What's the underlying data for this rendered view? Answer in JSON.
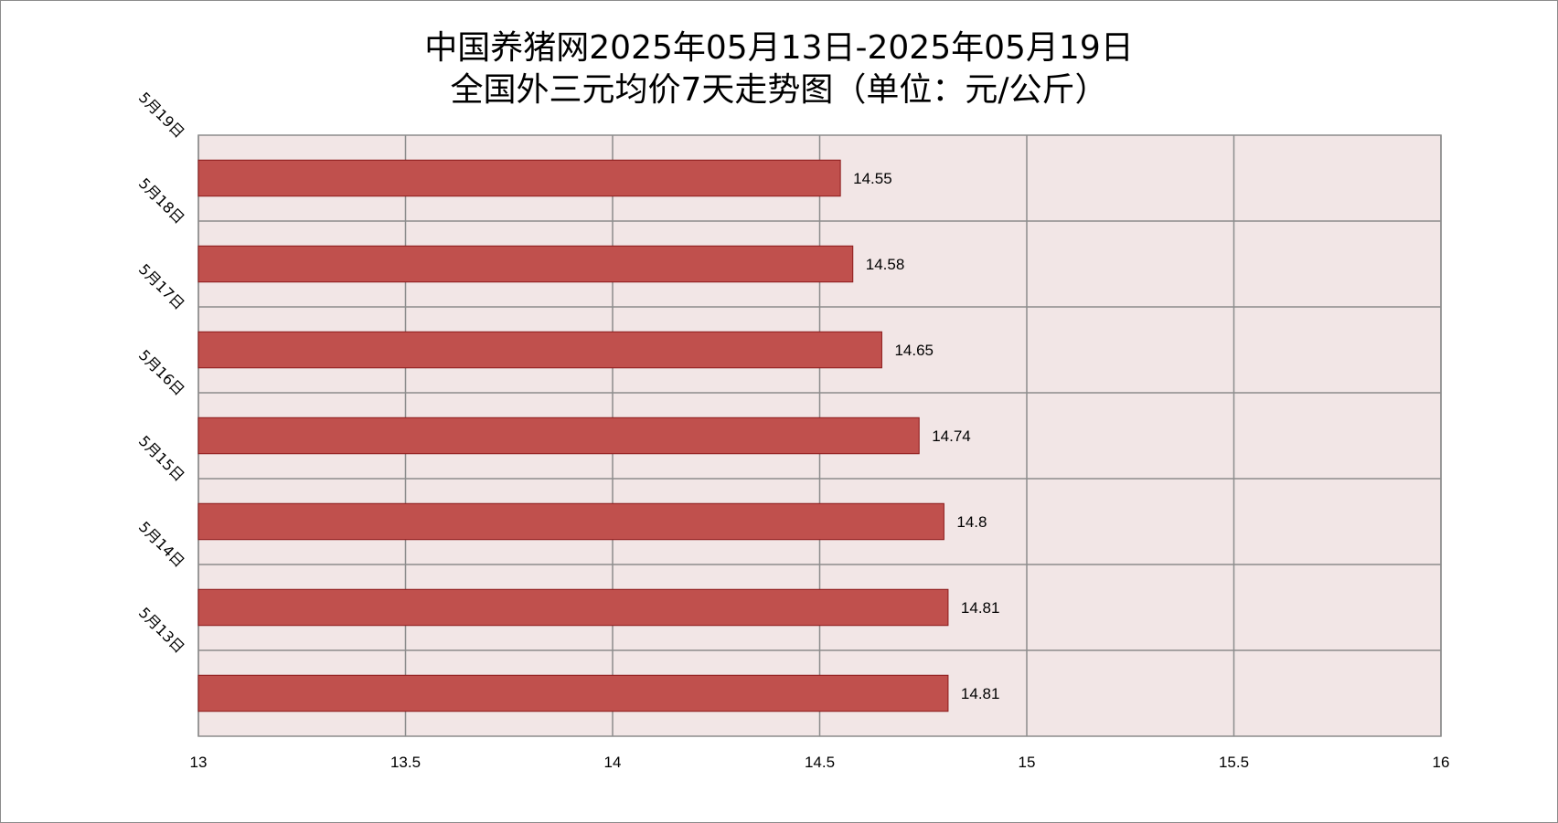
{
  "chart_data": {
    "type": "bar",
    "orientation": "horizontal",
    "title": "中国养猪网2025年05月13日-2025年05月19日",
    "subtitle": "全国外三元均价7天走势图（单位：元/公斤）",
    "categories": [
      "5月19日",
      "5月18日",
      "5月17日",
      "5月16日",
      "5月15日",
      "5月14日",
      "5月13日"
    ],
    "values": [
      14.55,
      14.58,
      14.65,
      14.74,
      14.8,
      14.81,
      14.81
    ],
    "data_labels": [
      "14.55",
      "14.58",
      "14.65",
      "14.74",
      "14.8",
      "14.81",
      "14.81"
    ],
    "xlim": [
      13,
      16
    ],
    "x_ticks": [
      13,
      13.5,
      14,
      14.5,
      15,
      15.5,
      16
    ],
    "x_tick_labels": [
      "13",
      "13.5",
      "14",
      "14.5",
      "15",
      "15.5",
      "16"
    ],
    "xlabel": "",
    "ylabel": "",
    "grid": true,
    "legend": "none",
    "colors": {
      "bar_fill": "#c0504d",
      "bar_edge": "#8b1a1a",
      "plot_background": "#f2e6e6",
      "grid": "#8c8c8c"
    }
  }
}
